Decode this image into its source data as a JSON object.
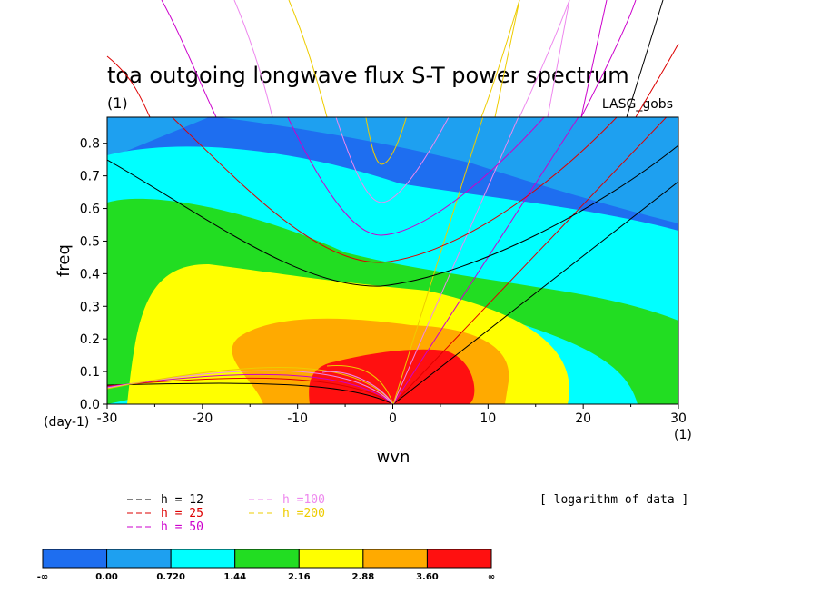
{
  "chart_data": {
    "type": "contour",
    "title": "toa outgoing longwave flux S-T power spectrum",
    "subtitle_left": "(1)",
    "subtitle_right": "LASG_gobs",
    "xlabel": "wvn",
    "ylabel": "freq",
    "x_unit_label": "(1)",
    "y_unit_label": "(day-1)",
    "xlim": [
      -30,
      30
    ],
    "ylim": [
      0.0,
      0.88
    ],
    "x_ticks": [
      -30,
      -20,
      -10,
      0,
      10,
      20,
      30
    ],
    "x_tick_labels": [
      "-30",
      "-20",
      "-10",
      "0",
      "10",
      "20",
      "30"
    ],
    "y_ticks": [
      0.0,
      0.1,
      0.2,
      0.3,
      0.4,
      0.5,
      0.6,
      0.7,
      0.8
    ],
    "y_tick_labels": [
      "0.0",
      "0.1",
      "0.2",
      "0.3",
      "0.4",
      "0.5",
      "0.6",
      "0.7",
      "0.8"
    ],
    "fill_levels": [
      0.0,
      0.72,
      1.44,
      2.16,
      2.88,
      3.6
    ],
    "fill_colors": [
      "#1e6ef0",
      "#1ea0f0",
      "#00ffff",
      "#22dd22",
      "#ffff00",
      "#ffaa00",
      "#ff1010"
    ],
    "colorbar_labels": [
      "-∞",
      "0.00",
      "0.720",
      "1.44",
      "2.16",
      "2.88",
      "3.60",
      "∞"
    ],
    "note": "[ logarithm of data ]",
    "dispersion_curves": [
      {
        "label": "h = 12",
        "color": "#000000"
      },
      {
        "label": "h = 25",
        "color": "#dd0000"
      },
      {
        "label": "h = 50",
        "color": "#cc00cc"
      },
      {
        "label": "h =100",
        "color": "#ee88ee"
      },
      {
        "label": "h =200",
        "color": "#eecc00"
      }
    ]
  }
}
